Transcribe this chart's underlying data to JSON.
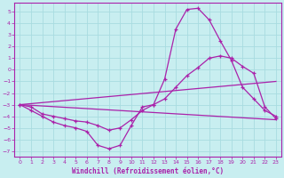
{
  "title": "Windchill (Refroidissement éolien,°C)",
  "bg_color": "#c8eef0",
  "grid_color": "#a8dce0",
  "line_color": "#aa22aa",
  "xlim": [
    -0.5,
    23.5
  ],
  "ylim": [
    -7.5,
    5.8
  ],
  "yticks": [
    5,
    4,
    3,
    2,
    1,
    0,
    -1,
    -2,
    -3,
    -4,
    -5,
    -6,
    -7
  ],
  "xticks": [
    0,
    1,
    2,
    3,
    4,
    5,
    6,
    7,
    8,
    9,
    10,
    11,
    12,
    13,
    14,
    15,
    16,
    17,
    18,
    19,
    20,
    21,
    22,
    23
  ],
  "series": [
    {
      "x": [
        0,
        1,
        2,
        3,
        4,
        5,
        6,
        7,
        8,
        9,
        10,
        11,
        12,
        13,
        14,
        15,
        16,
        17,
        18,
        19,
        20,
        21,
        22,
        23
      ],
      "y": [
        -3.0,
        -3.5,
        -4.0,
        -4.5,
        -4.8,
        -5.0,
        -5.3,
        -6.5,
        -6.8,
        -6.5,
        -4.8,
        -3.2,
        -3.0,
        -0.8,
        3.5,
        5.2,
        5.3,
        4.3,
        2.5,
        0.8,
        -1.5,
        -2.5,
        -3.5,
        -4.0
      ]
    },
    {
      "x": [
        0,
        1,
        2,
        3,
        4,
        5,
        6,
        7,
        8,
        9,
        10,
        11,
        12,
        13,
        14,
        15,
        16,
        17,
        18,
        19,
        20,
        21,
        22,
        23
      ],
      "y": [
        -3.0,
        -3.0,
        -3.8,
        -3.8,
        -4.0,
        -4.1,
        -4.2,
        -4.4,
        -4.5,
        -4.3,
        -3.8,
        -3.2,
        -2.8,
        -2.2,
        -1.5,
        -0.8,
        -0.2,
        0.5,
        0.8,
        1.0,
        0.5,
        -0.2,
        -3.3,
        -4.0
      ]
    },
    {
      "x": [
        0,
        1,
        2,
        3,
        4,
        5,
        6,
        7,
        8,
        9,
        10,
        11,
        12,
        13,
        14,
        15,
        16,
        17,
        18,
        19,
        20,
        21,
        22,
        23
      ],
      "y": [
        -3.2,
        -3.3,
        -4.0,
        -4.2,
        -4.4,
        -4.5,
        -4.6,
        -4.7,
        -4.8,
        -4.7,
        -4.5,
        -4.2,
        -4.0,
        -3.8,
        -3.5,
        -3.3,
        -3.2,
        -3.0,
        -3.2,
        -3.3,
        -3.5,
        -3.7,
        -4.0,
        -4.3
      ]
    },
    {
      "x": [
        0,
        1,
        2,
        3,
        4,
        5,
        6,
        7,
        8,
        9,
        10,
        11,
        12,
        13,
        14,
        15,
        16,
        17,
        18,
        19,
        20,
        21,
        22,
        23
      ],
      "y": [
        -3.0,
        -3.2,
        -3.8,
        -4.0,
        -4.2,
        -4.4,
        -4.5,
        -4.8,
        -5.2,
        -5.0,
        -4.3,
        -3.5,
        -3.0,
        -2.5,
        -1.5,
        -0.5,
        0.2,
        1.0,
        1.2,
        1.0,
        0.3,
        -0.3,
        -3.2,
        -4.2
      ]
    }
  ]
}
